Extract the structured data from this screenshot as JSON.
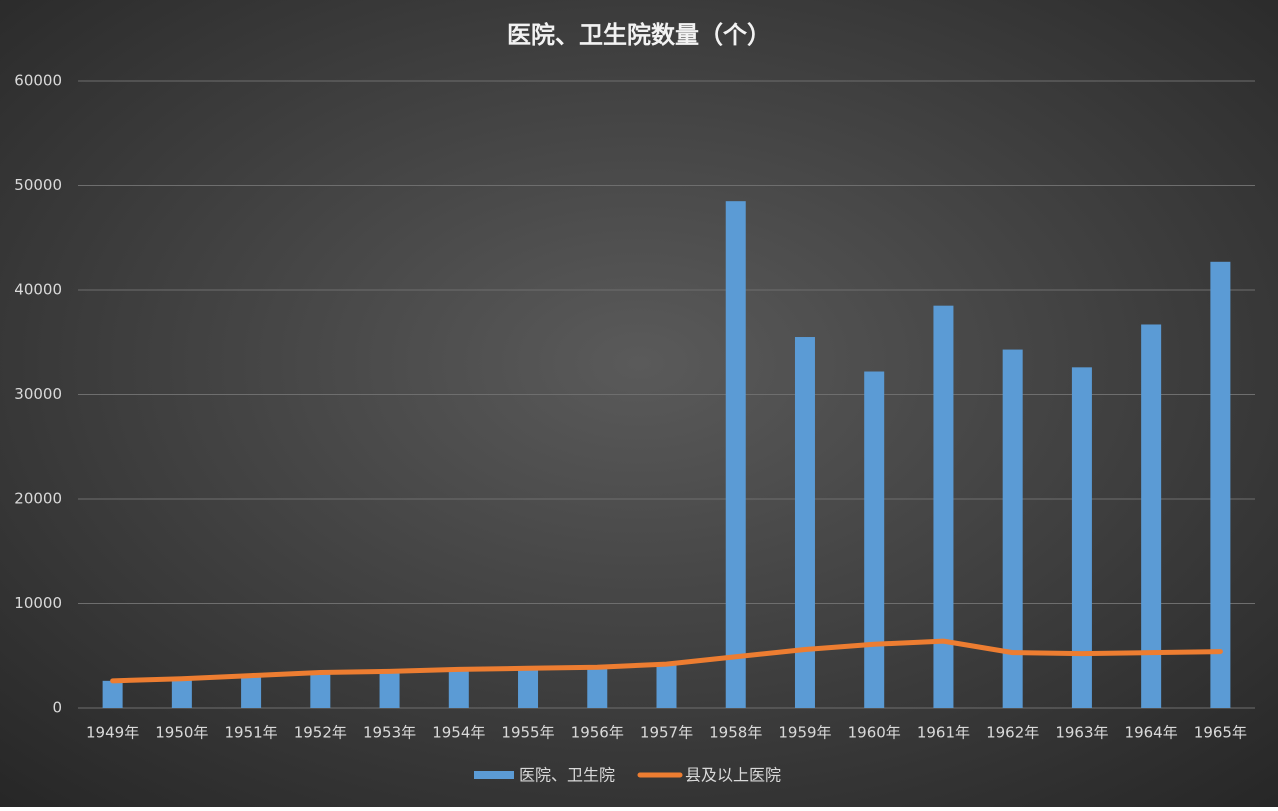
{
  "chart_data": {
    "type": "bar",
    "title": "医院、卫生院数量（个）",
    "categories": [
      "1949年",
      "1950年",
      "1951年",
      "1952年",
      "1953年",
      "1954年",
      "1955年",
      "1956年",
      "1957年",
      "1958年",
      "1959年",
      "1960年",
      "1961年",
      "1962年",
      "1963年",
      "1964年",
      "1965年"
    ],
    "series": [
      {
        "name": "医院、卫生院",
        "type": "bar",
        "color": "#5b9bd5",
        "values": [
          2600,
          2800,
          3000,
          3500,
          3600,
          3700,
          3800,
          3900,
          4200,
          48500,
          35500,
          32200,
          38500,
          34300,
          32600,
          36700,
          42700
        ]
      },
      {
        "name": "县及以上医院",
        "type": "line",
        "color": "#ed7d31",
        "values": [
          2600,
          2800,
          3100,
          3400,
          3500,
          3700,
          3800,
          3900,
          4200,
          4900,
          5600,
          6100,
          6400,
          5300,
          5200,
          5300,
          5400
        ]
      }
    ],
    "ylim": [
      0,
      60000
    ],
    "yticks": [
      0,
      10000,
      20000,
      30000,
      40000,
      50000,
      60000
    ],
    "grid": true,
    "legend": "bottom"
  }
}
